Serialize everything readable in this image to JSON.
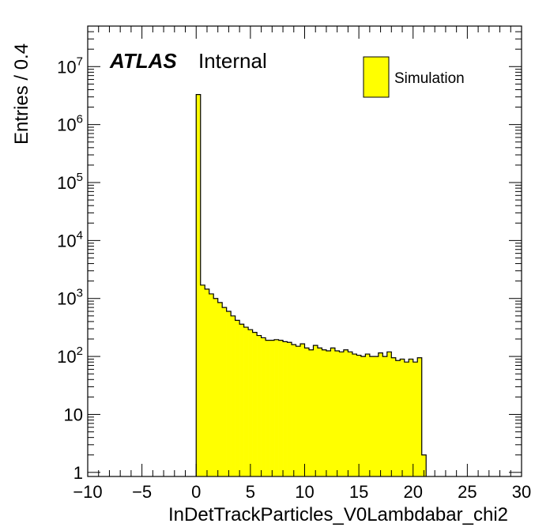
{
  "chart_data": {
    "type": "bar",
    "title": "",
    "xlabel": "InDetTrackParticles_V0Lambdabar_chi2",
    "ylabel": "Entries / 0.4",
    "xlim": [
      -10,
      30
    ],
    "ylim": [
      0.85,
      50000000
    ],
    "y_scale": "log",
    "bin_width": 0.4,
    "x_ticks": [
      -10,
      -5,
      0,
      5,
      10,
      15,
      20,
      25,
      30
    ],
    "x_tick_labels": [
      "−10",
      "−5",
      "0",
      "5",
      "10",
      "15",
      "20",
      "25",
      "30"
    ],
    "y_tick_labels": [
      {
        "value": 1,
        "base": "1",
        "exp": ""
      },
      {
        "value": 10,
        "base": "10",
        "exp": ""
      },
      {
        "value": 100,
        "base": "10",
        "exp": "2"
      },
      {
        "value": 1000,
        "base": "10",
        "exp": "3"
      },
      {
        "value": 10000,
        "base": "10",
        "exp": "4"
      },
      {
        "value": 100000,
        "base": "10",
        "exp": "5"
      },
      {
        "value": 1000000,
        "base": "10",
        "exp": "6"
      },
      {
        "value": 10000000,
        "base": "10",
        "exp": "7"
      }
    ],
    "fill_color": "#ffff00",
    "line_color": "#000000",
    "grid": false,
    "legend": {
      "position": "top-right",
      "entries": [
        "Simulation"
      ]
    },
    "series": [
      {
        "name": "Simulation",
        "bin_edges_start": 0,
        "values": [
          3300000,
          1700,
          1450,
          1200,
          1000,
          850,
          700,
          600,
          500,
          420,
          360,
          320,
          290,
          260,
          230,
          210,
          190,
          190,
          195,
          190,
          180,
          175,
          160,
          150,
          165,
          140,
          130,
          155,
          140,
          130,
          125,
          140,
          125,
          120,
          130,
          120,
          110,
          105,
          100,
          110,
          100,
          100,
          115,
          100,
          120,
          95,
          85,
          90,
          80,
          90,
          80,
          95,
          2
        ]
      }
    ]
  },
  "annotations": {
    "atlas_label": "ATLAS",
    "atlas_sub": "Internal"
  }
}
